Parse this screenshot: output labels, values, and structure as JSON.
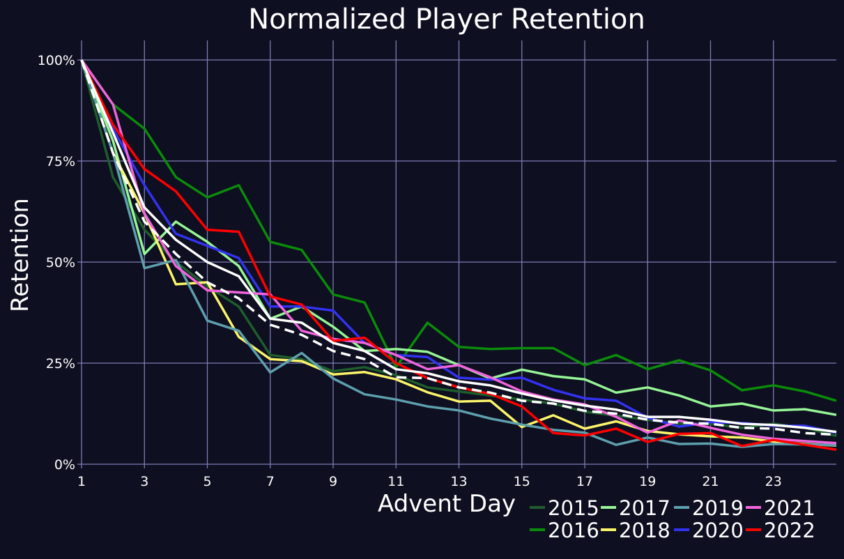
{
  "chart_data": {
    "type": "line",
    "title": "Normalized Player Retention",
    "xlabel": "Advent Day",
    "ylabel": "Retention",
    "xlim": [
      1,
      25
    ],
    "ylim": [
      0,
      1
    ],
    "xticks": [
      1,
      3,
      5,
      7,
      9,
      11,
      13,
      15,
      17,
      19,
      21,
      23
    ],
    "yticks": [
      0,
      0.25,
      0.5,
      0.75,
      1.0
    ],
    "ytick_labels": [
      "0%",
      "25%",
      "50%",
      "75%",
      "100%"
    ],
    "grid": true,
    "legend_position": "bottom-right",
    "x": [
      1,
      2,
      3,
      4,
      5,
      6,
      7,
      8,
      9,
      10,
      11,
      12,
      13,
      14,
      15,
      16,
      17,
      18,
      19,
      20,
      21,
      22,
      23,
      24,
      25
    ],
    "series": [
      {
        "name": "2015",
        "color": "#1d5e2c",
        "values": [
          1.0,
          0.71,
          0.58,
          0.5,
          0.44,
          0.39,
          0.27,
          0.26,
          0.23,
          0.24,
          0.22,
          0.19,
          0.18,
          0.17,
          0.16,
          0.15,
          0.13,
          0.12,
          0.11,
          0.1,
          0.1,
          0.09,
          0.1,
          0.09,
          0.07
        ]
      },
      {
        "name": "2016",
        "color": "#0a8c0a",
        "values": [
          1.0,
          0.89,
          0.83,
          0.71,
          0.66,
          0.69,
          0.55,
          0.53,
          0.42,
          0.4,
          0.24,
          0.35,
          0.29,
          0.285,
          0.287,
          0.287,
          0.245,
          0.27,
          0.235,
          0.257,
          0.232,
          0.183,
          0.195,
          0.18,
          0.157
        ]
      },
      {
        "name": "2017",
        "color": "#96f596",
        "values": [
          1.0,
          0.8,
          0.52,
          0.6,
          0.55,
          0.49,
          0.36,
          0.39,
          0.34,
          0.28,
          0.285,
          0.278,
          0.245,
          0.212,
          0.234,
          0.218,
          0.21,
          0.177,
          0.19,
          0.17,
          0.143,
          0.15,
          0.133,
          0.136,
          0.122
        ]
      },
      {
        "name": "2018",
        "color": "#fbf46a",
        "values": [
          1.0,
          0.77,
          0.62,
          0.445,
          0.45,
          0.315,
          0.26,
          0.255,
          0.222,
          0.228,
          0.21,
          0.178,
          0.155,
          0.157,
          0.092,
          0.121,
          0.088,
          0.106,
          0.082,
          0.074,
          0.069,
          0.066,
          0.056,
          0.05,
          0.046
        ]
      },
      {
        "name": "2019",
        "color": "#5e9fae",
        "values": [
          1.0,
          0.77,
          0.485,
          0.505,
          0.355,
          0.33,
          0.227,
          0.275,
          0.212,
          0.173,
          0.16,
          0.143,
          0.133,
          0.113,
          0.098,
          0.085,
          0.078,
          0.048,
          0.066,
          0.05,
          0.051,
          0.043,
          0.05,
          0.049,
          0.047
        ]
      },
      {
        "name": "2020",
        "color": "#3232f0",
        "values": [
          1.0,
          0.83,
          0.69,
          0.57,
          0.54,
          0.51,
          0.39,
          0.39,
          0.38,
          0.3,
          0.27,
          0.265,
          0.214,
          0.209,
          0.214,
          0.184,
          0.163,
          0.157,
          0.115,
          0.093,
          0.104,
          0.102,
          0.095,
          0.095,
          0.078
        ]
      },
      {
        "name": "2021",
        "color": "#f064dc",
        "values": [
          1.0,
          0.89,
          0.62,
          0.49,
          0.43,
          0.425,
          0.42,
          0.33,
          0.31,
          0.3,
          0.27,
          0.235,
          0.245,
          0.215,
          0.18,
          0.16,
          0.148,
          0.117,
          0.078,
          0.108,
          0.09,
          0.073,
          0.063,
          0.057,
          0.052
        ]
      },
      {
        "name": "2022",
        "color": "#ff0000",
        "values": [
          1.0,
          0.84,
          0.73,
          0.675,
          0.58,
          0.575,
          0.415,
          0.395,
          0.305,
          0.313,
          0.25,
          0.213,
          0.19,
          0.174,
          0.143,
          0.077,
          0.071,
          0.088,
          0.055,
          0.075,
          0.077,
          0.045,
          0.06,
          0.048,
          0.036
        ]
      },
      {
        "name": "",
        "color": "#ffffff",
        "dash": false,
        "values": [
          1.0,
          0.82,
          0.635,
          0.555,
          0.5,
          0.465,
          0.36,
          0.35,
          0.3,
          0.28,
          0.235,
          0.225,
          0.205,
          0.195,
          0.175,
          0.158,
          0.145,
          0.135,
          0.117,
          0.117,
          0.11,
          0.1,
          0.097,
          0.09,
          0.08
        ]
      },
      {
        "name": "",
        "color": "#ffffff",
        "dash": true,
        "values": [
          1.0,
          0.77,
          0.6,
          0.52,
          0.45,
          0.41,
          0.345,
          0.32,
          0.28,
          0.26,
          0.215,
          0.213,
          0.19,
          0.177,
          0.157,
          0.15,
          0.132,
          0.125,
          0.11,
          0.103,
          0.1,
          0.09,
          0.088,
          0.077,
          0.073
        ]
      }
    ]
  }
}
